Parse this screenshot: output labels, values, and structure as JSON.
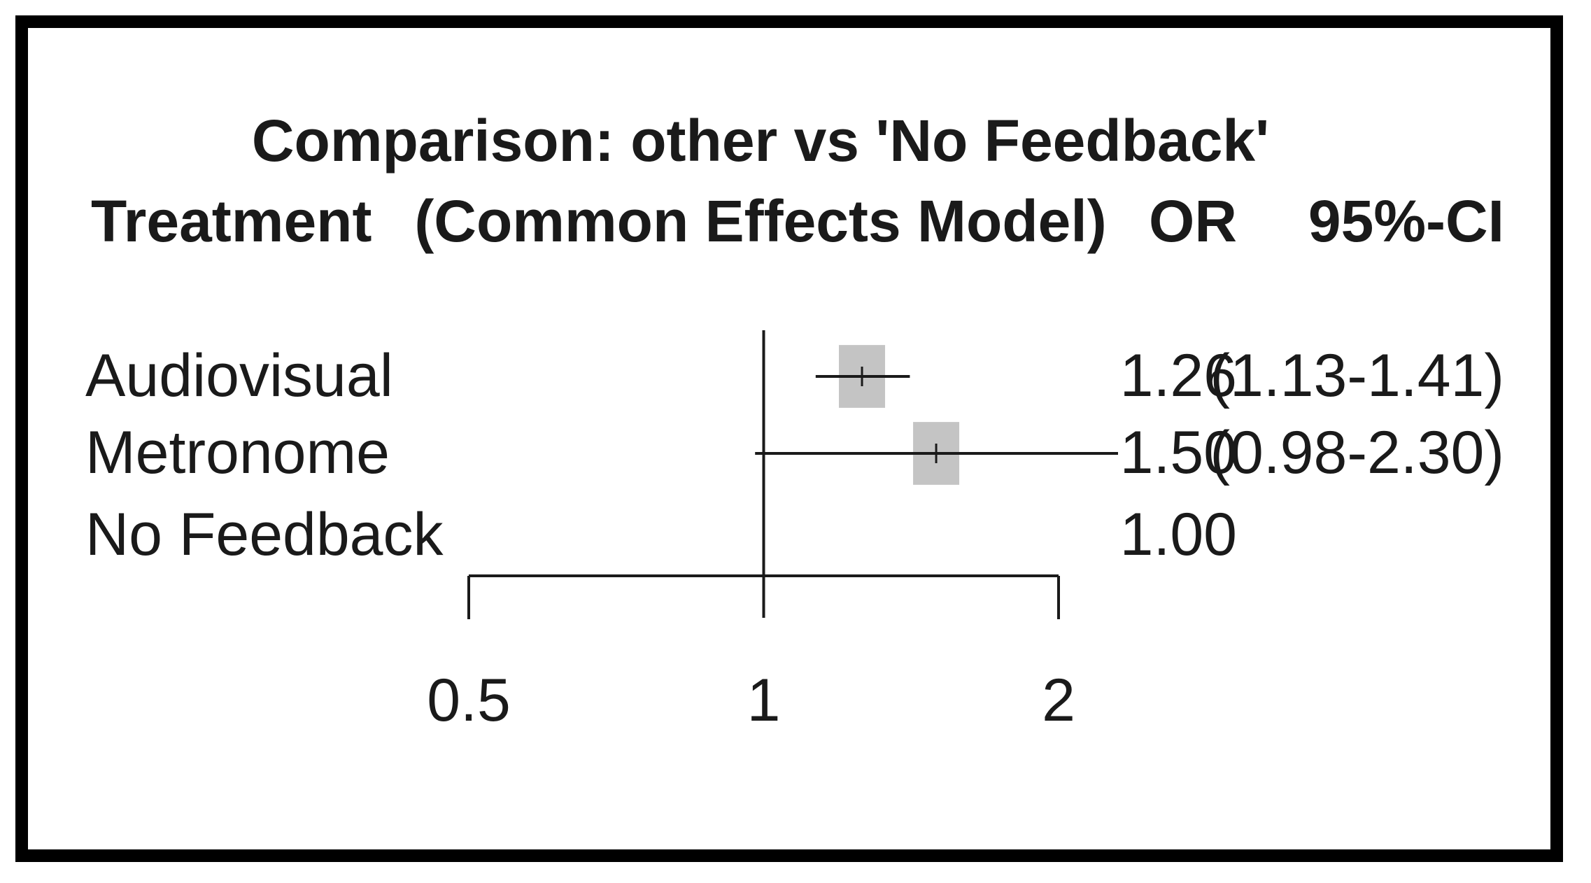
{
  "chart_data": {
    "type": "forest",
    "title": "Comparison: other vs 'No Feedback'",
    "subtitle": "(Common Effects Model)",
    "column_headers": {
      "treatment": "Treatment",
      "or": "OR",
      "ci": "95%-CI"
    },
    "scale": "log",
    "reference_value": 1,
    "x_ticks": [
      {
        "value": 0.5,
        "label": "0.5"
      },
      {
        "value": 1,
        "label": "1"
      },
      {
        "value": 2,
        "label": "2"
      }
    ],
    "xlim": [
      0.5,
      2
    ],
    "rows": [
      {
        "treatment": "Audiovisual",
        "or": 1.26,
        "or_label": "1.26",
        "lower": 1.13,
        "upper": 1.41,
        "ci_label": "(1.13-1.41)"
      },
      {
        "treatment": "Metronome",
        "or": 1.5,
        "or_label": "1.50",
        "lower": 0.98,
        "upper": 2.3,
        "ci_label": "(0.98-2.30)"
      },
      {
        "treatment": "No Feedback",
        "or": 1.0,
        "or_label": "1.00",
        "lower": null,
        "upper": null,
        "ci_label": ""
      }
    ],
    "colors": {
      "square": "#c4c4c4",
      "line": "#1a1a1a",
      "text": "#1a1a1a"
    }
  }
}
